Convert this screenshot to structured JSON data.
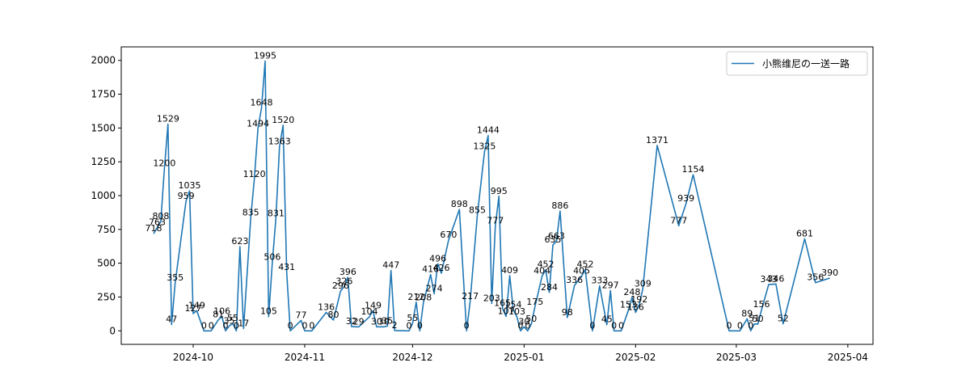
{
  "chart_data": {
    "type": "line",
    "title": "",
    "xlabel": "",
    "ylabel": "",
    "grid": false,
    "legend_position": "top-right",
    "xlim": [
      "2024-09-11",
      "2025-04-08"
    ],
    "ylim": [
      -100,
      2100
    ],
    "x_ticks": [
      "2024-10-01",
      "2024-11-01",
      "2024-12-01",
      "2025-01-01",
      "2025-02-01",
      "2025-03-01",
      "2025-04-01"
    ],
    "x_tick_labels": [
      "2024-10",
      "2024-11",
      "2024-12",
      "2025-01",
      "2025-02",
      "2025-03",
      "2025-04"
    ],
    "y_ticks": [
      0,
      250,
      500,
      750,
      1000,
      1250,
      1500,
      1750,
      2000
    ],
    "y_tick_labels": [
      "0",
      "250",
      "500",
      "750",
      "1000",
      "1250",
      "1500",
      "1750",
      "2000"
    ],
    "series": [
      {
        "name": "小熊维尼の一送一路",
        "color": "#1f77b4",
        "points": [
          [
            "2024-09-20",
            718
          ],
          [
            "2024-09-21",
            763
          ],
          [
            "2024-09-22",
            808
          ],
          [
            "2024-09-23",
            1200
          ],
          [
            "2024-09-24",
            1529
          ],
          [
            "2024-09-25",
            47
          ],
          [
            "2024-09-26",
            355
          ],
          [
            "2024-09-29",
            959
          ],
          [
            "2024-09-30",
            1035
          ],
          [
            "2024-10-01",
            127
          ],
          [
            "2024-10-02",
            149
          ],
          [
            "2024-10-04",
            0
          ],
          [
            "2024-10-06",
            0
          ],
          [
            "2024-10-08",
            81
          ],
          [
            "2024-10-09",
            106
          ],
          [
            "2024-10-10",
            0
          ],
          [
            "2024-10-11",
            35
          ],
          [
            "2024-10-12",
            55
          ],
          [
            "2024-10-13",
            0
          ],
          [
            "2024-10-14",
            623
          ],
          [
            "2024-10-15",
            17
          ],
          [
            "2024-10-17",
            835
          ],
          [
            "2024-10-18",
            1120
          ],
          [
            "2024-10-19",
            1494
          ],
          [
            "2024-10-20",
            1648
          ],
          [
            "2024-10-21",
            1995
          ],
          [
            "2024-10-22",
            105
          ],
          [
            "2024-10-23",
            506
          ],
          [
            "2024-10-24",
            831
          ],
          [
            "2024-10-25",
            1363
          ],
          [
            "2024-10-26",
            1520
          ],
          [
            "2024-10-27",
            431
          ],
          [
            "2024-10-28",
            0
          ],
          [
            "2024-10-31",
            77
          ],
          [
            "2024-11-01",
            0
          ],
          [
            "2024-11-03",
            0
          ],
          [
            "2024-11-07",
            136
          ],
          [
            "2024-11-09",
            80
          ],
          [
            "2024-11-11",
            296
          ],
          [
            "2024-11-12",
            326
          ],
          [
            "2024-11-13",
            396
          ],
          [
            "2024-11-14",
            32
          ],
          [
            "2024-11-16",
            29
          ],
          [
            "2024-11-19",
            104
          ],
          [
            "2024-11-20",
            149
          ],
          [
            "2024-11-21",
            30
          ],
          [
            "2024-11-23",
            30
          ],
          [
            "2024-11-24",
            35
          ],
          [
            "2024-11-25",
            447
          ],
          [
            "2024-11-26",
            2
          ],
          [
            "2024-11-30",
            0
          ],
          [
            "2024-12-01",
            55
          ],
          [
            "2024-12-02",
            212
          ],
          [
            "2024-12-03",
            0
          ],
          [
            "2024-12-04",
            208
          ],
          [
            "2024-12-06",
            416
          ],
          [
            "2024-12-07",
            274
          ],
          [
            "2024-12-08",
            496
          ],
          [
            "2024-12-09",
            426
          ],
          [
            "2024-12-11",
            670
          ],
          [
            "2024-12-14",
            898
          ],
          [
            "2024-12-16",
            0
          ],
          [
            "2024-12-17",
            217
          ],
          [
            "2024-12-19",
            855
          ],
          [
            "2024-12-21",
            1325
          ],
          [
            "2024-12-22",
            1444
          ],
          [
            "2024-12-23",
            203
          ],
          [
            "2024-12-24",
            777
          ],
          [
            "2024-12-25",
            995
          ],
          [
            "2024-12-26",
            165
          ],
          [
            "2024-12-27",
            107
          ],
          [
            "2024-12-28",
            409
          ],
          [
            "2024-12-29",
            154
          ],
          [
            "2024-12-30",
            103
          ],
          [
            "2024-12-31",
            0
          ],
          [
            "2025-01-01",
            30
          ],
          [
            "2025-01-02",
            0
          ],
          [
            "2025-01-03",
            50
          ],
          [
            "2025-01-04",
            175
          ],
          [
            "2025-01-06",
            404
          ],
          [
            "2025-01-07",
            452
          ],
          [
            "2025-01-08",
            284
          ],
          [
            "2025-01-09",
            635
          ],
          [
            "2025-01-10",
            663
          ],
          [
            "2025-01-11",
            886
          ],
          [
            "2025-01-13",
            98
          ],
          [
            "2025-01-15",
            336
          ],
          [
            "2025-01-17",
            405
          ],
          [
            "2025-01-18",
            452
          ],
          [
            "2025-01-20",
            0
          ],
          [
            "2025-01-22",
            333
          ],
          [
            "2025-01-24",
            45
          ],
          [
            "2025-01-25",
            297
          ],
          [
            "2025-01-26",
            0
          ],
          [
            "2025-01-28",
            0
          ],
          [
            "2025-01-30",
            153
          ],
          [
            "2025-01-31",
            248
          ],
          [
            "2025-02-01",
            136
          ],
          [
            "2025-02-02",
            192
          ],
          [
            "2025-02-03",
            309
          ],
          [
            "2025-02-07",
            1371
          ],
          [
            "2025-02-13",
            777
          ],
          [
            "2025-02-15",
            939
          ],
          [
            "2025-02-17",
            1154
          ],
          [
            "2025-02-27",
            0
          ],
          [
            "2025-03-02",
            0
          ],
          [
            "2025-03-04",
            89
          ],
          [
            "2025-03-05",
            0
          ],
          [
            "2025-03-06",
            51
          ],
          [
            "2025-03-07",
            50
          ],
          [
            "2025-03-08",
            156
          ],
          [
            "2025-03-10",
            343
          ],
          [
            "2025-03-12",
            346
          ],
          [
            "2025-03-14",
            52
          ],
          [
            "2025-03-20",
            681
          ],
          [
            "2025-03-23",
            356
          ],
          [
            "2025-03-27",
            390
          ]
        ]
      }
    ]
  }
}
